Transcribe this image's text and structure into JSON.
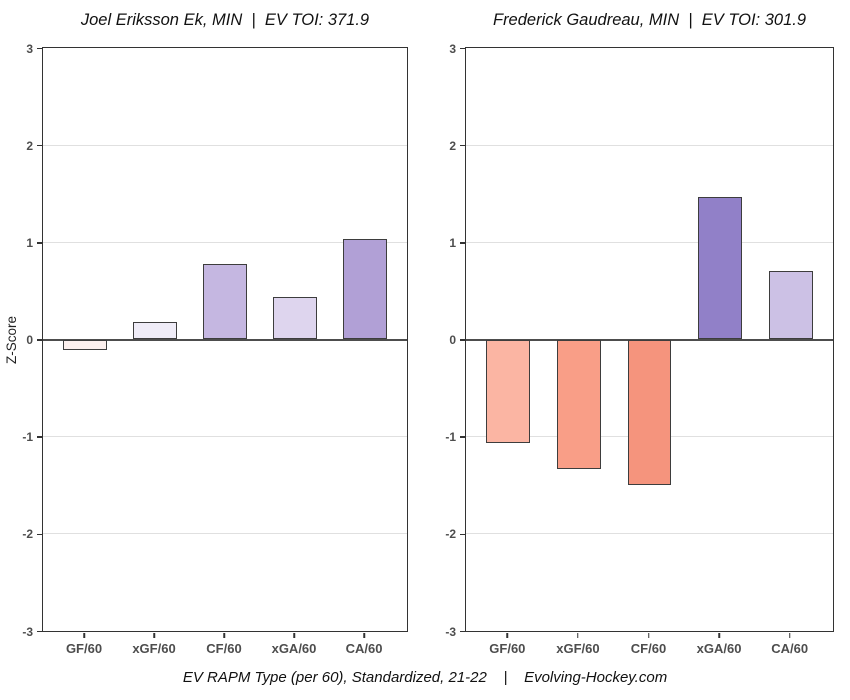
{
  "caption": "EV RAPM Type (per 60), Standardized, 21-22    |    Evolving-Hockey.com",
  "style": {
    "zero_line": "#4d4d4d",
    "gridline": "#e0e0e0",
    "panel_border": "#333333",
    "bar_border": "#3d3d3d",
    "tick_text": "#4d4d4d"
  },
  "chart_data": [
    {
      "type": "bar",
      "title": "Joel Eriksson Ek, MIN  |  EV TOI: 371.9",
      "player": "Joel Eriksson Ek",
      "team": "MIN",
      "ev_toi": "371.9",
      "ylabel": "Z-Score",
      "xlabel": "",
      "categories": [
        "GF/60",
        "xGF/60",
        "CF/60",
        "xGA/60",
        "CA/60"
      ],
      "values": [
        -0.11,
        0.18,
        0.78,
        0.44,
        1.03
      ],
      "bar_colors": [
        "#fcf0ee",
        "#efecf7",
        "#c5b7e1",
        "#ded5ee",
        "#b1a0d6"
      ],
      "ylim": [
        -3,
        3
      ],
      "yticks": [
        3,
        2,
        1,
        0,
        -1,
        -2,
        -3
      ],
      "grid": true,
      "legend": "none"
    },
    {
      "type": "bar",
      "title": "Frederick Gaudreau, MIN  |  EV TOI: 301.9",
      "player": "Frederick Gaudreau",
      "team": "MIN",
      "ev_toi": "301.9",
      "ylabel": "",
      "xlabel": "",
      "categories": [
        "GF/60",
        "xGF/60",
        "CF/60",
        "xGA/60",
        "CA/60"
      ],
      "values": [
        -1.07,
        -1.33,
        -1.5,
        1.47,
        0.7
      ],
      "bar_colors": [
        "#fbb5a3",
        "#f99e87",
        "#f5947d",
        "#9180c8",
        "#ccc1e5"
      ],
      "ylim": [
        -3,
        3
      ],
      "yticks": [
        3,
        2,
        1,
        0,
        -1,
        -2,
        -3
      ],
      "grid": true,
      "legend": "none"
    }
  ]
}
